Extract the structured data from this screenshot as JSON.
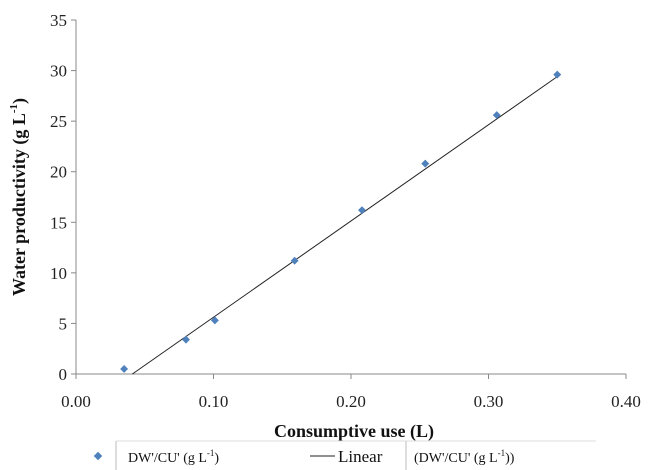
{
  "chart_data": {
    "type": "scatter",
    "xlabel": "Consumptive use (L)",
    "ylabel": "Water productivity (g L",
    "ylabel_sup": "-1",
    "ylabel_close": ")",
    "xlim": [
      0,
      0.4
    ],
    "ylim": [
      0,
      35
    ],
    "xticks": [
      "0.00",
      "0.10",
      "0.20",
      "0.30",
      "0.40"
    ],
    "xtick_values": [
      0,
      0.1,
      0.2,
      0.3,
      0.4
    ],
    "yticks": [
      "0",
      "5",
      "10",
      "15",
      "20",
      "25",
      "30",
      "35"
    ],
    "ytick_values": [
      0,
      5,
      10,
      15,
      20,
      25,
      30,
      35
    ],
    "grid": false,
    "legend_placement": "bottom",
    "series": [
      {
        "name": "DW'/CU' (g L-1)",
        "kind": "scatter",
        "color": "#4f81bd",
        "x": [
          0.035,
          0.08,
          0.101,
          0.159,
          0.208,
          0.254,
          0.306,
          0.35
        ],
        "y": [
          0.5,
          3.4,
          5.3,
          11.2,
          16.2,
          20.8,
          25.6,
          29.6
        ]
      },
      {
        "name": "Linear (DW'/CU' (g L-1))",
        "kind": "trendline",
        "color": "#222222",
        "x": [
          0.041,
          0.35
        ],
        "y": [
          0,
          29.4
        ]
      }
    ],
    "legend": {
      "marker_label": "DW'/CU'  (g L",
      "marker_label_sup": "-1",
      "marker_label_close": ")",
      "linear_word": "Linear",
      "linear_label": "(DW'/CU'  (g L",
      "linear_label_sup": "-1",
      "linear_label_close": "))"
    }
  }
}
